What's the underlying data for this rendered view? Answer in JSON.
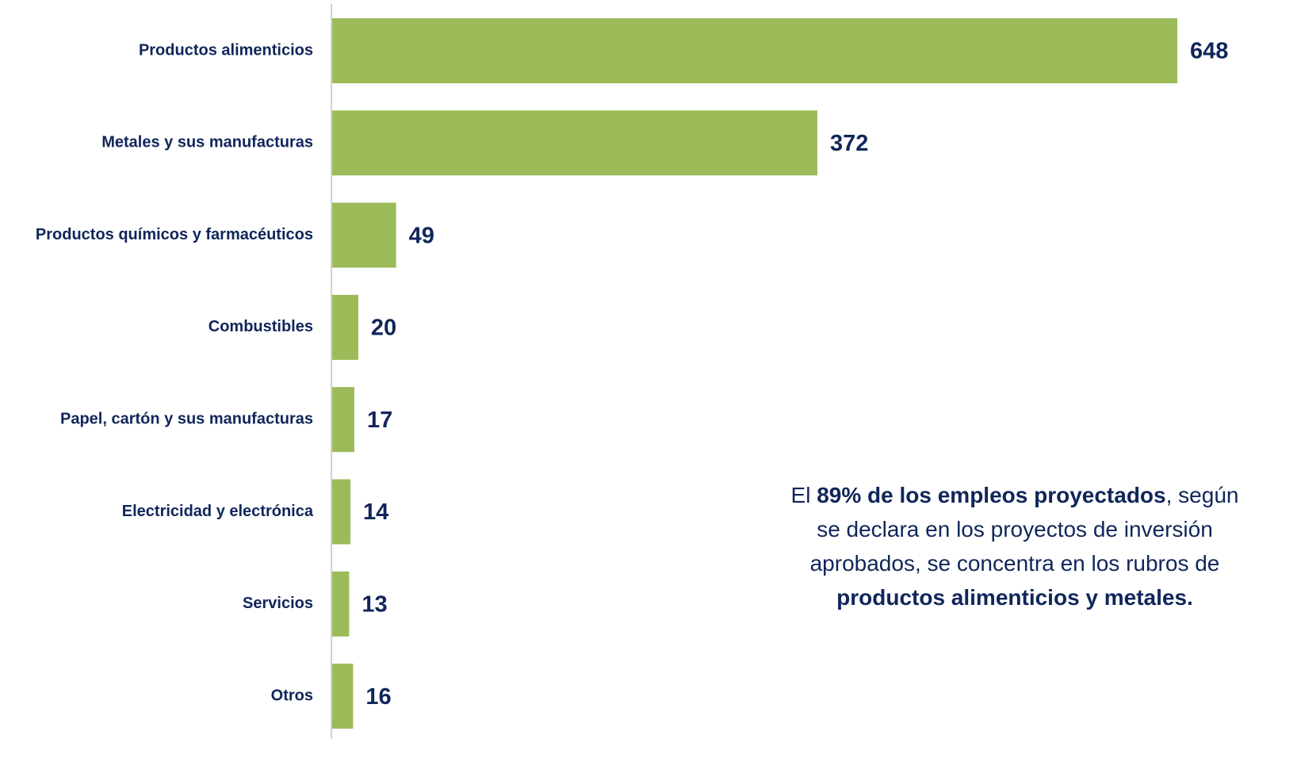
{
  "chart_data": {
    "type": "bar",
    "orientation": "horizontal",
    "categories": [
      "Productos alimenticios",
      "Metales y sus manufacturas",
      "Productos químicos y farmacéuticos",
      "Combustibles",
      "Papel, cartón y sus manufacturas",
      "Electricidad y electrónica",
      "Servicios",
      "Otros"
    ],
    "values": [
      648,
      372,
      49,
      20,
      17,
      14,
      13,
      16
    ],
    "color": "#9bbb59",
    "annotation": [
      [
        {
          "text": "El ",
          "bold": false
        },
        {
          "text": "89% de los empleos proyectados",
          "bold": true
        },
        {
          "text": ", según",
          "bold": false
        }
      ],
      [
        {
          "text": "se declara en los proyectos de inversión",
          "bold": false
        }
      ],
      [
        {
          "text": "aprobados, se concentra en los rubros de",
          "bold": false
        }
      ],
      [
        {
          "text": "productos alimenticios y metales.",
          "bold": true
        }
      ]
    ]
  }
}
